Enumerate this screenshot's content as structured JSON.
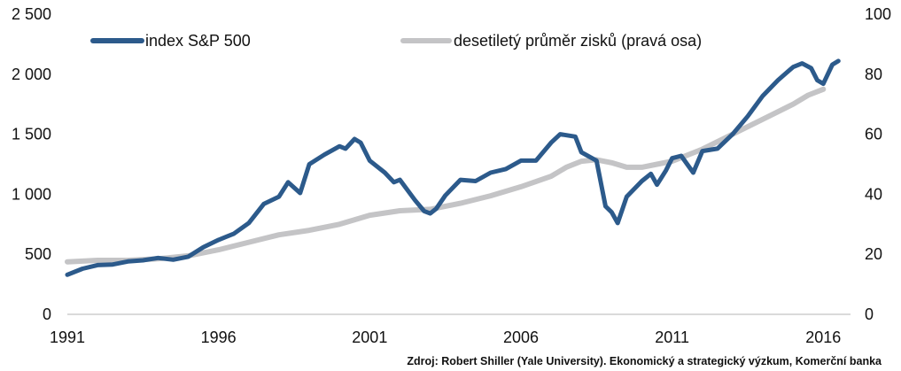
{
  "source_note": "Zdroj: Robert Shiller (Yale University). Ekonomický a strategický výzkum, Komerční banka",
  "chart_data": {
    "type": "line",
    "x_ticks": [
      "1991",
      "1996",
      "2001",
      "2006",
      "2011",
      "2016"
    ],
    "xlim": [
      1991,
      2016.9
    ],
    "ylim_left": [
      0,
      2500
    ],
    "ylim_right": [
      0,
      100
    ],
    "y_ticks_left": [
      "0",
      "500",
      "1 000",
      "1 500",
      "2 000",
      "2 500"
    ],
    "y_ticks_right": [
      "0",
      "20",
      "40",
      "60",
      "80",
      "100"
    ],
    "grid": false,
    "legend_position": "top",
    "series": [
      {
        "name": "index S&P 500",
        "axis": "left",
        "color": "#2c5a8b",
        "x": [
          1991.0,
          1991.5,
          1992.0,
          1992.5,
          1993.0,
          1993.5,
          1994.0,
          1994.5,
          1995.0,
          1995.5,
          1996.0,
          1996.5,
          1997.0,
          1997.5,
          1998.0,
          1998.3,
          1998.7,
          1999.0,
          1999.5,
          2000.0,
          2000.2,
          2000.5,
          2000.7,
          2001.0,
          2001.5,
          2001.8,
          2002.0,
          2002.5,
          2002.8,
          2003.0,
          2003.2,
          2003.5,
          2004.0,
          2004.5,
          2005.0,
          2005.5,
          2006.0,
          2006.5,
          2007.0,
          2007.3,
          2007.8,
          2008.0,
          2008.5,
          2008.8,
          2009.0,
          2009.2,
          2009.5,
          2010.0,
          2010.3,
          2010.5,
          2010.8,
          2011.0,
          2011.3,
          2011.7,
          2012.0,
          2012.5,
          2013.0,
          2013.5,
          2014.0,
          2014.5,
          2015.0,
          2015.3,
          2015.6,
          2015.8,
          2016.0,
          2016.3,
          2016.5
        ],
        "values": [
          330,
          380,
          410,
          415,
          440,
          450,
          470,
          455,
          480,
          560,
          620,
          670,
          760,
          920,
          980,
          1100,
          1010,
          1250,
          1330,
          1400,
          1380,
          1460,
          1430,
          1280,
          1180,
          1100,
          1120,
          950,
          860,
          840,
          880,
          990,
          1120,
          1110,
          1180,
          1210,
          1280,
          1280,
          1430,
          1500,
          1480,
          1350,
          1280,
          900,
          850,
          760,
          980,
          1110,
          1170,
          1080,
          1200,
          1300,
          1320,
          1180,
          1360,
          1380,
          1500,
          1650,
          1820,
          1950,
          2060,
          2090,
          2050,
          1950,
          1920,
          2080,
          2110
        ]
      },
      {
        "name": "desetiletý průměr zisků (pravá osa)",
        "axis": "right",
        "color": "#c4c4c6",
        "x": [
          1991.0,
          1992.0,
          1993.0,
          1994.0,
          1995.0,
          1996.0,
          1997.0,
          1998.0,
          1999.0,
          2000.0,
          2001.0,
          2002.0,
          2003.0,
          2004.0,
          2005.0,
          2006.0,
          2007.0,
          2007.5,
          2008.0,
          2008.5,
          2009.0,
          2009.5,
          2010.0,
          2010.5,
          2011.0,
          2012.0,
          2013.0,
          2014.0,
          2015.0,
          2015.5,
          2016.0
        ],
        "values": [
          17.5,
          18,
          18,
          18.5,
          19.5,
          21.5,
          24,
          26.5,
          28,
          30,
          33,
          34.5,
          35,
          37,
          39.5,
          42.5,
          46,
          49,
          51,
          51.5,
          50.5,
          49,
          49,
          50,
          51,
          55,
          60,
          65,
          70,
          73,
          75
        ]
      }
    ]
  }
}
